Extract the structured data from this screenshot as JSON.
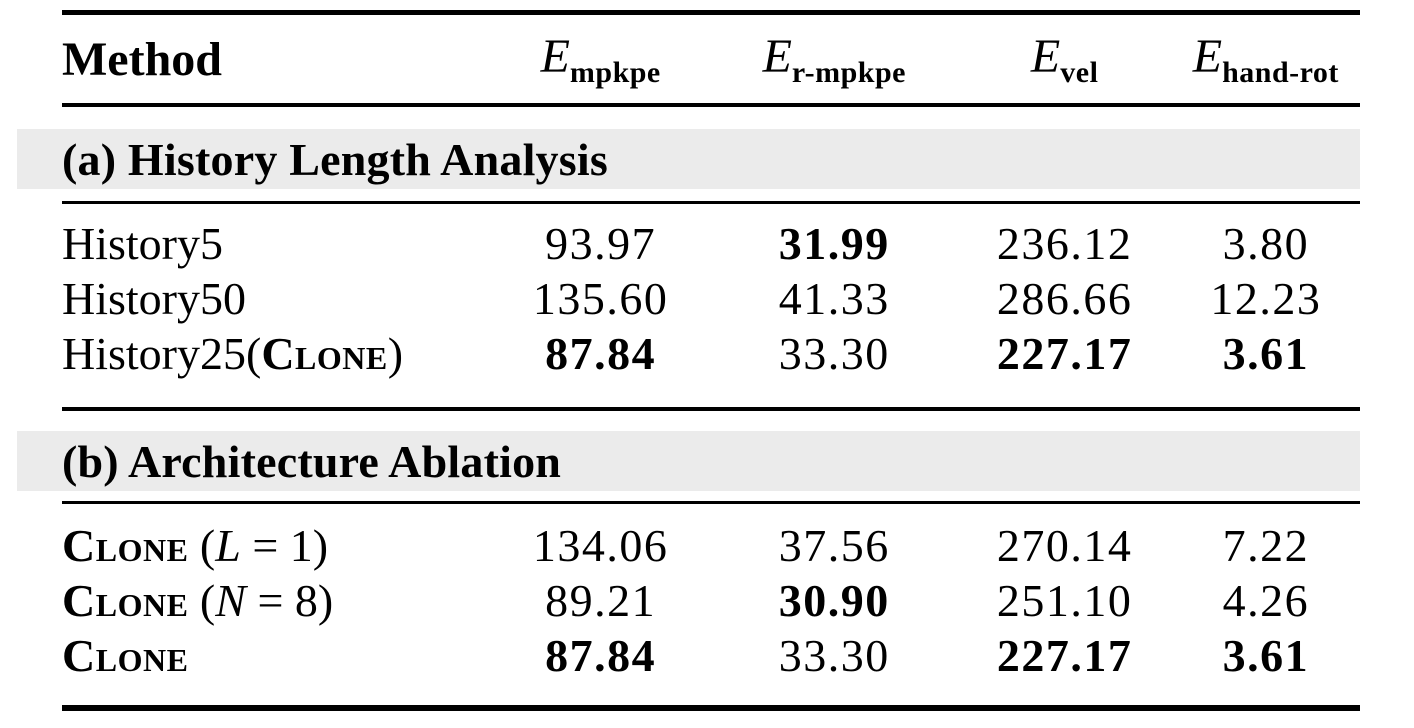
{
  "table": {
    "colors": {
      "band_bg": "#ebebeb",
      "rule": "#000000",
      "text": "#000000"
    },
    "header": {
      "method_label": "Method",
      "metrics": [
        {
          "symbol": "E",
          "subscript": "mpkpe"
        },
        {
          "symbol": "E",
          "subscript": "r-mpkpe"
        },
        {
          "symbol": "E",
          "subscript": "vel"
        },
        {
          "symbol": "E",
          "subscript": "hand-rot"
        }
      ]
    },
    "sections": [
      {
        "title": "(a) History Length Analysis",
        "rows": [
          {
            "method": [
              "History5"
            ],
            "values": [
              {
                "text": "93.97",
                "bold": false
              },
              {
                "text": "31.99",
                "bold": true
              },
              {
                "text": "236.12",
                "bold": false
              },
              {
                "text": "3.80",
                "bold": false
              }
            ]
          },
          {
            "method": [
              "History50"
            ],
            "values": [
              {
                "text": "135.60",
                "bold": false
              },
              {
                "text": "41.33",
                "bold": false
              },
              {
                "text": "286.66",
                "bold": false
              },
              {
                "text": "12.23",
                "bold": false
              }
            ]
          },
          {
            "method": [
              "History25(",
              "Clone",
              ")"
            ],
            "values": [
              {
                "text": "87.84",
                "bold": true
              },
              {
                "text": "33.30",
                "bold": false
              },
              {
                "text": "227.17",
                "bold": true
              },
              {
                "text": "3.61",
                "bold": true
              }
            ]
          }
        ]
      },
      {
        "title": "(b) Architecture Ablation",
        "rows": [
          {
            "method": [
              "Clone",
              " (",
              "L",
              " = 1)"
            ],
            "values": [
              {
                "text": "134.06",
                "bold": false
              },
              {
                "text": "37.56",
                "bold": false
              },
              {
                "text": "270.14",
                "bold": false
              },
              {
                "text": "7.22",
                "bold": false
              }
            ]
          },
          {
            "method": [
              "Clone",
              " (",
              "N",
              " = 8)"
            ],
            "values": [
              {
                "text": "89.21",
                "bold": false
              },
              {
                "text": "30.90",
                "bold": true
              },
              {
                "text": "251.10",
                "bold": false
              },
              {
                "text": "4.26",
                "bold": false
              }
            ]
          },
          {
            "method": [
              "Clone"
            ],
            "values": [
              {
                "text": "87.84",
                "bold": true
              },
              {
                "text": "33.30",
                "bold": false
              },
              {
                "text": "227.17",
                "bold": true
              },
              {
                "text": "3.61",
                "bold": true
              }
            ]
          }
        ]
      }
    ]
  }
}
